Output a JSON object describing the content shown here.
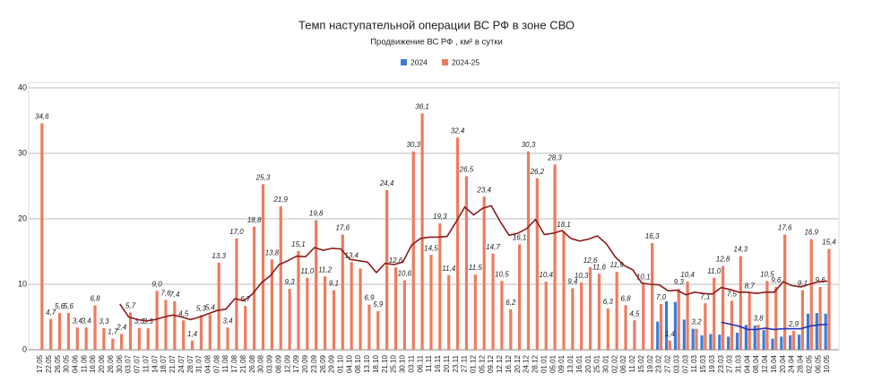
{
  "chart_data": {
    "type": "bar",
    "title": "Темп наступательной операции ВС РФ в зоне СВО",
    "subtitle": "Продвижение ВС РФ , км² в сутки",
    "categories": [
      "17.05",
      "22.05",
      "26.05",
      "30.05",
      "04.06",
      "11.06",
      "16.06",
      "20.06",
      "26.06",
      "30.06",
      "03.07",
      "07.07",
      "11.07",
      "14.07",
      "18.07",
      "21.07",
      "24.07",
      "28.07",
      "31.07",
      "04.08",
      "07.08",
      "11.08",
      "17.08",
      "21.08",
      "26.08",
      "30.08",
      "03.09",
      "08.09",
      "12.09",
      "17.09",
      "20.09",
      "23.09",
      "26.09",
      "29.09",
      "01.10",
      "04.10",
      "08.10",
      "13.10",
      "18.10",
      "21.10",
      "25.10",
      "30.10",
      "03.11",
      "06.11",
      "11.11",
      "16.11",
      "20.11",
      "23.11",
      "27.11",
      "01.12",
      "05.12",
      "09.12",
      "12.12",
      "16.12",
      "20.12",
      "24.12",
      "28.12",
      "01.01",
      "05.01",
      "09.01",
      "13.01",
      "16.01",
      "20.01",
      "25.01",
      "30.01",
      "02.02",
      "06.02",
      "11.02",
      "15.02",
      "19.02",
      "23.02",
      "27.02",
      "03.03",
      "07.03",
      "11.03",
      "15.03",
      "19.03",
      "23.03",
      "27.03",
      "31.03",
      "04.04",
      "08.04",
      "12.04",
      "16.04",
      "20.04",
      "24.04",
      "28.04",
      "02.05",
      "06.05",
      "10.05"
    ],
    "series": [
      {
        "name": "2024",
        "color": "#3b7dd8",
        "values": [
          null,
          null,
          null,
          null,
          null,
          null,
          null,
          null,
          null,
          null,
          null,
          null,
          null,
          null,
          null,
          null,
          null,
          null,
          null,
          null,
          null,
          null,
          null,
          null,
          null,
          null,
          null,
          null,
          null,
          null,
          null,
          null,
          null,
          null,
          null,
          null,
          null,
          null,
          null,
          null,
          null,
          null,
          null,
          null,
          null,
          null,
          null,
          null,
          null,
          null,
          null,
          null,
          null,
          null,
          null,
          null,
          null,
          null,
          null,
          null,
          null,
          null,
          null,
          null,
          null,
          null,
          null,
          null,
          null,
          null,
          4.3,
          7.4,
          7.3,
          4.6,
          3.2,
          2.2,
          2.4,
          2.3,
          2.0,
          2.6,
          3.8,
          3.7,
          3.0,
          1.7,
          2.0,
          2.2,
          2.3,
          5.5,
          5.6,
          5.5
        ]
      },
      {
        "name": "2024-25",
        "color": "#ee7b5f",
        "values": [
          34.6,
          4.7,
          5.6,
          5.6,
          3.4,
          3.4,
          6.8,
          3.3,
          1.7,
          2.4,
          5.7,
          3.3,
          3.3,
          9.0,
          7.6,
          7.4,
          4.5,
          1.4,
          5.3,
          5.4,
          13.3,
          3.4,
          17.0,
          6.7,
          18.8,
          25.3,
          13.8,
          21.9,
          9.3,
          15.1,
          11.0,
          19.8,
          11.2,
          9.1,
          17.6,
          13.4,
          12.4,
          6.9,
          5.9,
          24.4,
          12.6,
          10.6,
          30.3,
          36.1,
          14.5,
          19.3,
          11.4,
          32.4,
          26.5,
          11.5,
          23.4,
          14.7,
          10.5,
          6.2,
          16.1,
          30.3,
          26.2,
          10.4,
          28.3,
          18.1,
          9.4,
          10.3,
          12.6,
          11.6,
          6.3,
          11.9,
          6.8,
          4.5,
          10.1,
          16.3,
          7.0,
          1.4,
          9.3,
          10.4,
          3.2,
          7.1,
          11.0,
          12.8,
          7.5,
          14.3,
          8.7,
          3.8,
          10.5,
          9.6,
          17.6,
          2.9,
          9.1,
          16.9,
          9.6,
          15.4
        ],
        "value_labels": [
          "34,6",
          "4,7",
          "5,6",
          "5,6",
          "3,4",
          "3,4",
          "6,8",
          "3,3",
          "1,7",
          "2,4",
          "5,7",
          "3,3",
          "3,3",
          "9,0",
          "7,6",
          "7,4",
          "4,5",
          "1,4",
          "5,3",
          "5,4",
          "13,3",
          "3,4",
          "17,0",
          "6,7",
          "18,8",
          "25,3",
          "13,8",
          "21,9",
          "9,3",
          "15,1",
          "11,0",
          "19,8",
          "11,2",
          "9,1",
          "17,6",
          "13,4",
          null,
          "6,9",
          "5,9",
          "24,4",
          "12,6",
          "10,6",
          "30,3",
          "36,1",
          "14,5",
          "19,3",
          "11,4",
          "32,4",
          "26,5",
          "11,5",
          "23,4",
          "14,7",
          "10,5",
          "6,2",
          "16,1",
          "30,3",
          "26,2",
          "10,4",
          "28,3",
          "18,1",
          "9,4",
          "10,3",
          "12,6",
          "11,6",
          "6,3",
          "11,9",
          "6,8",
          "4,5",
          "10,1",
          "16,3",
          "7,0",
          "1,4",
          "9,3",
          "10,4",
          "3,2",
          "7,1",
          "11,0",
          "12,8",
          "7,5",
          "14,3",
          "8,7",
          "3,8",
          "10,5",
          "9,6",
          "17,6",
          "2,9",
          "9,1",
          "16,9",
          "9,6",
          "15,4"
        ]
      },
      {
        "type": "line",
        "color": "#8b1c1c",
        "values": [
          null,
          null,
          null,
          null,
          null,
          null,
          null,
          null,
          null,
          7.0,
          5.0,
          4.6,
          4.4,
          4.6,
          5.0,
          5.3,
          5.0,
          4.6,
          5.0,
          5.5,
          6.0,
          6.2,
          7.8,
          7.5,
          8.5,
          10.2,
          11.3,
          13.0,
          13.6,
          14.3,
          14.2,
          15.6,
          15.2,
          15.5,
          15.4,
          13.8,
          13.6,
          13.4,
          11.8,
          13.2,
          13.0,
          13.4,
          16.0,
          17.0,
          17.2,
          17.2,
          17.3,
          19.5,
          21.8,
          20.6,
          21.6,
          22.0,
          19.6,
          17.5,
          17.8,
          18.5,
          19.9,
          17.6,
          17.8,
          18.2,
          17.0,
          16.6,
          16.9,
          17.4,
          16.2,
          14.2,
          12.9,
          12.2,
          10.2,
          10.0,
          9.9,
          9.0,
          9.1,
          8.4,
          8.8,
          8.6,
          8.5,
          9.5,
          9.2,
          8.8,
          8.8,
          8.6,
          8.8,
          8.8,
          10.4,
          9.8,
          9.6,
          10.0,
          10.4,
          10.5
        ]
      },
      {
        "type": "line",
        "color": "#2233bb",
        "values": [
          null,
          null,
          null,
          null,
          null,
          null,
          null,
          null,
          null,
          null,
          null,
          null,
          null,
          null,
          null,
          null,
          null,
          null,
          null,
          null,
          null,
          null,
          null,
          null,
          null,
          null,
          null,
          null,
          null,
          null,
          null,
          null,
          null,
          null,
          null,
          null,
          null,
          null,
          null,
          null,
          null,
          null,
          null,
          null,
          null,
          null,
          null,
          null,
          null,
          null,
          null,
          null,
          null,
          null,
          null,
          null,
          null,
          null,
          null,
          null,
          null,
          null,
          null,
          null,
          null,
          null,
          null,
          null,
          null,
          null,
          null,
          null,
          null,
          null,
          null,
          null,
          null,
          4.2,
          3.9,
          3.6,
          3.1,
          3.1,
          3.3,
          3.1,
          3.2,
          3.2,
          3.2,
          3.6,
          3.8,
          3.9
        ]
      }
    ],
    "ylim": [
      0,
      40
    ],
    "yticks": [
      0,
      10,
      20,
      30,
      40
    ],
    "grid": true
  }
}
